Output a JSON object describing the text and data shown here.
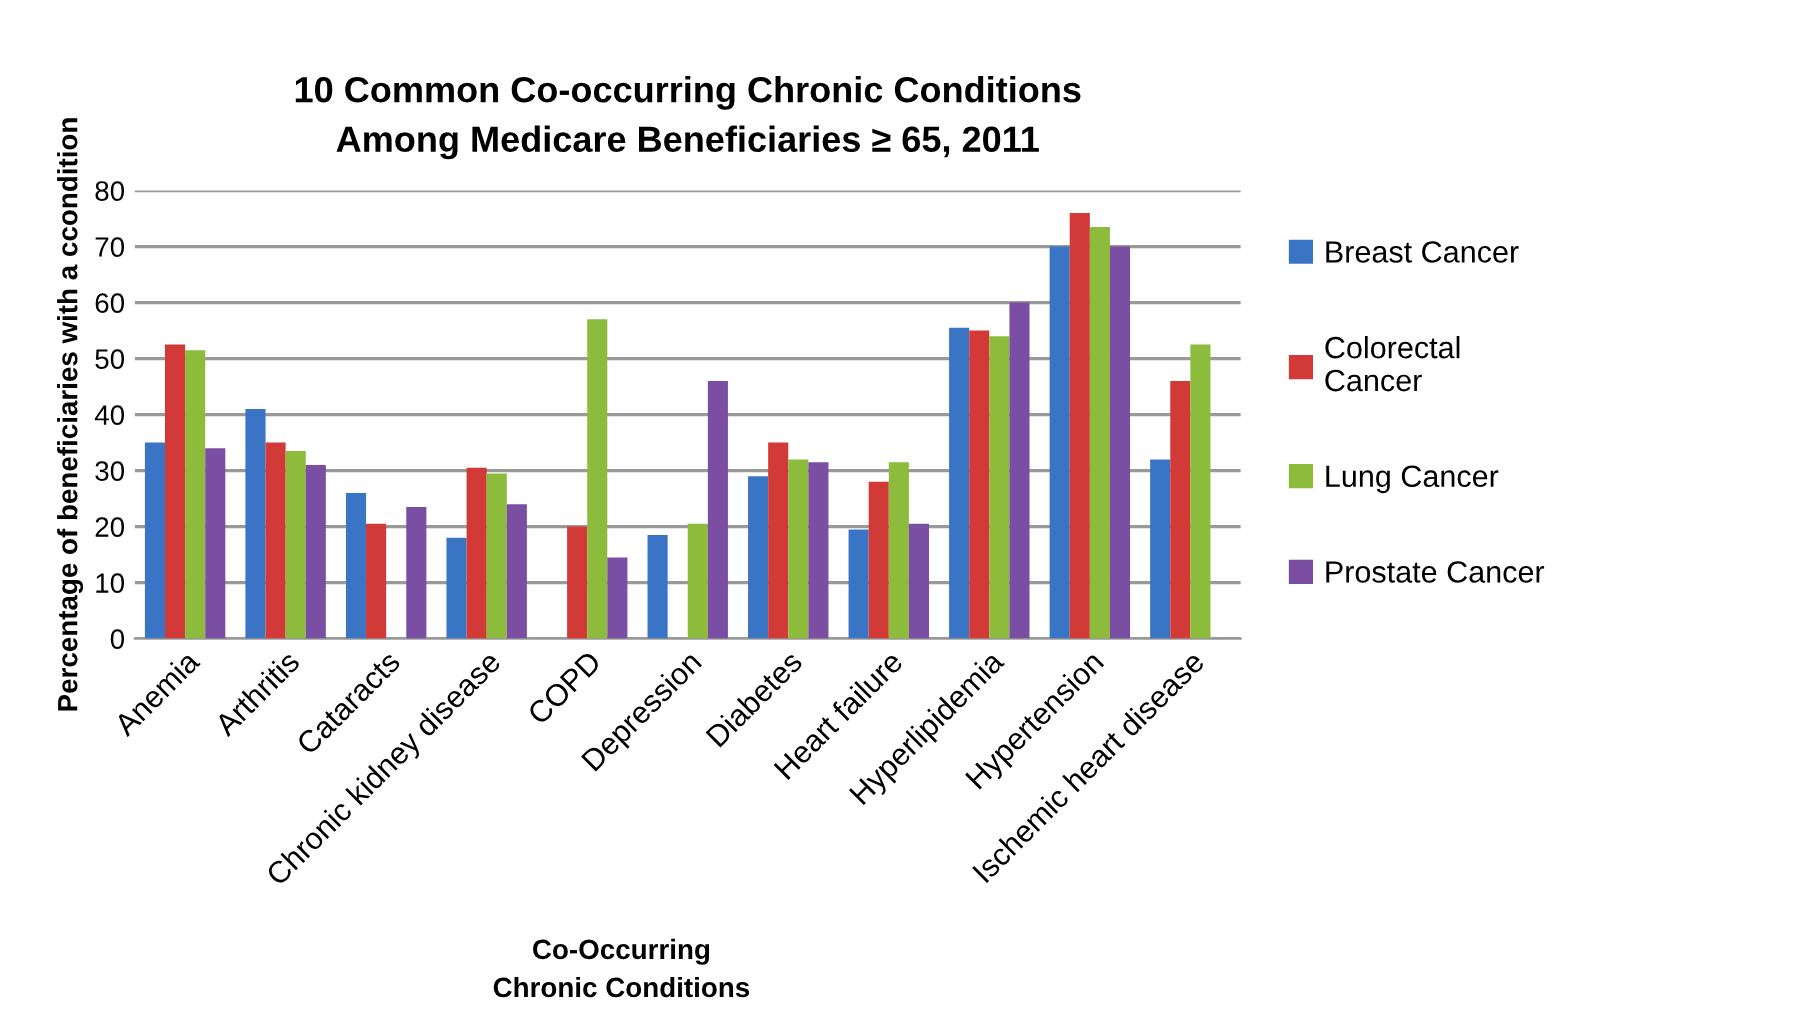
{
  "chart_data": {
    "type": "bar",
    "title": "10 Common Co-occurring Chronic Conditions\nAmong Medicare Beneficiaries ≥ 65, 2011",
    "xlabel": "Co-Occurring\nChronic Conditions",
    "ylabel": "Percentage of beneficiaries with a ccondition",
    "categories": [
      "Anemia",
      "Arthritis",
      "Cataracts",
      "Chronic kidney disease",
      "COPD",
      "Depression",
      "Diabetes",
      "Heart failure",
      "Hyperlipidemia",
      "Hypertension",
      "Ischemic heart disease"
    ],
    "series": [
      {
        "name": "Breast Cancer",
        "color": "#3a74c4",
        "values": [
          35,
          41,
          26,
          18,
          null,
          18.5,
          29,
          19.5,
          55.5,
          70,
          32
        ]
      },
      {
        "name": "Colorectal\nCancer",
        "color": "#d13a36",
        "values": [
          52.5,
          35,
          20.5,
          30.5,
          20,
          null,
          35,
          28,
          55,
          76,
          46
        ]
      },
      {
        "name": "Lung Cancer",
        "color": "#8dbb3c",
        "values": [
          51.5,
          33.5,
          null,
          29.5,
          57,
          20.5,
          32,
          31.5,
          54,
          73.5,
          52.5
        ]
      },
      {
        "name": "Prostate Cancer",
        "color": "#7a4fa3",
        "values": [
          34,
          31,
          23.5,
          24,
          14.5,
          46,
          31.5,
          20.5,
          60,
          70,
          null
        ]
      }
    ],
    "ylim": [
      0,
      80
    ],
    "yticks": [
      0,
      10,
      20,
      30,
      40,
      50,
      60,
      70,
      80
    ],
    "grid": "y",
    "legend": "right"
  }
}
